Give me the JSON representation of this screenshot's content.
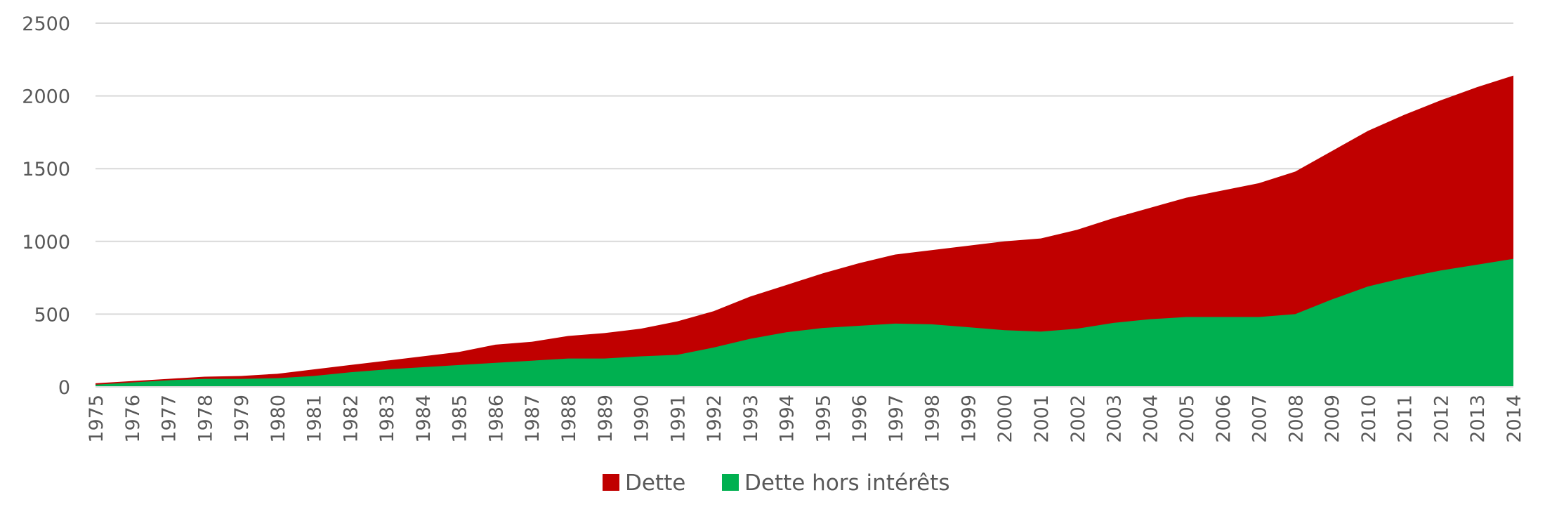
{
  "chart_data": {
    "type": "area",
    "stacking": "overlay",
    "x": [
      1975,
      1976,
      1977,
      1978,
      1979,
      1980,
      1981,
      1982,
      1983,
      1984,
      1985,
      1986,
      1987,
      1988,
      1989,
      1990,
      1991,
      1992,
      1993,
      1994,
      1995,
      1996,
      1997,
      1998,
      1999,
      2000,
      2001,
      2002,
      2003,
      2004,
      2005,
      2006,
      2007,
      2008,
      2009,
      2010,
      2011,
      2012,
      2013,
      2014
    ],
    "x_tick_labels": [
      "1975",
      "1976",
      "1977",
      "1978",
      "1979",
      "1980",
      "1981",
      "1982",
      "1983",
      "1984",
      "1985",
      "1986",
      "1987",
      "1988",
      "1989",
      "1990",
      "1991",
      "1992",
      "1993",
      "1994",
      "1995",
      "1996",
      "1997",
      "1998",
      "1999",
      "2000",
      "2001",
      "2002",
      "2003",
      "2004",
      "2005",
      "2006",
      "2007",
      "2008",
      "2009",
      "2010",
      "2011",
      "2012",
      "2013",
      "2014"
    ],
    "series": [
      {
        "name": "Dette",
        "color": "#C00000",
        "values": [
          25,
          40,
          55,
          70,
          75,
          90,
          120,
          150,
          180,
          210,
          240,
          290,
          310,
          350,
          370,
          400,
          450,
          520,
          620,
          700,
          780,
          850,
          910,
          940,
          970,
          1000,
          1020,
          1080,
          1160,
          1230,
          1300,
          1350,
          1400,
          1480,
          1620,
          1760,
          1870,
          1970,
          2060,
          2140
        ]
      },
      {
        "name": "Dette hors intérêts",
        "color": "#00B050",
        "values": [
          15,
          30,
          45,
          55,
          55,
          60,
          75,
          100,
          120,
          135,
          150,
          165,
          180,
          195,
          195,
          210,
          220,
          270,
          330,
          375,
          405,
          420,
          435,
          430,
          410,
          390,
          380,
          400,
          440,
          465,
          480,
          480,
          480,
          500,
          600,
          690,
          750,
          800,
          840,
          880
        ]
      }
    ],
    "y_ticks": [
      "0",
      "500",
      "1000",
      "1500",
      "2000",
      "2500"
    ],
    "ylim": [
      0,
      2500
    ],
    "xlabel": "",
    "ylabel": "",
    "title": "",
    "grid": "horizontal",
    "legend_position": "bottom",
    "legend_order": [
      "Dette",
      "Dette hors intérêts"
    ]
  }
}
